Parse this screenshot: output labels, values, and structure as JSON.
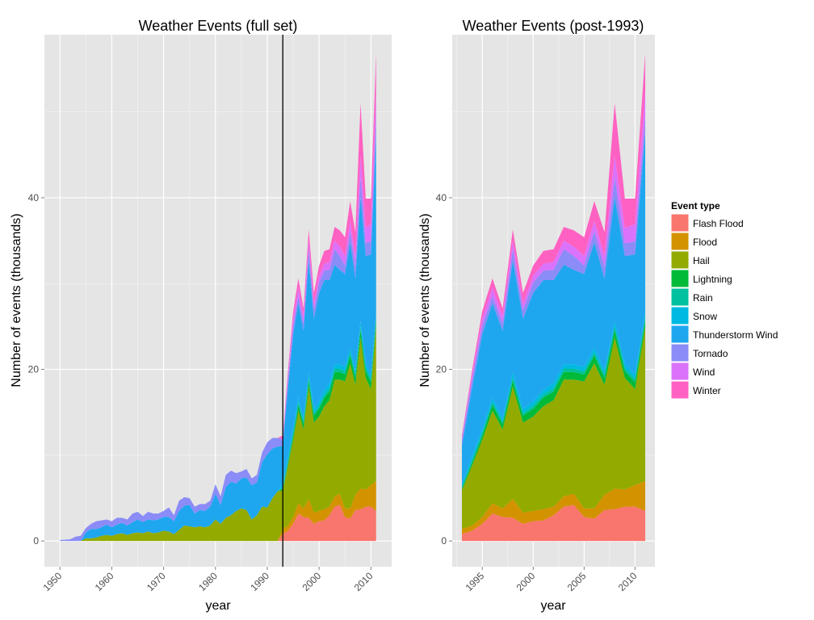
{
  "chart_data": [
    {
      "type": "area",
      "title": "Weather Events (full set)",
      "xlabel": "year",
      "ylabel": "Number of events (thousands)",
      "xlim": [
        1947,
        2014
      ],
      "ylim": [
        -3,
        59
      ],
      "x_ticks": [
        1950,
        1960,
        1970,
        1980,
        1990,
        2000,
        2010
      ],
      "y_ticks": [
        0,
        20,
        40
      ],
      "vline_x": 1993,
      "grid": true,
      "stack_order": [
        "Flash Flood",
        "Flood",
        "Hail",
        "Lightning",
        "Rain",
        "Snow",
        "Thunderstorm Wind",
        "Tornado",
        "Wind",
        "Winter"
      ],
      "x": [
        1950,
        1951,
        1952,
        1953,
        1954,
        1955,
        1956,
        1957,
        1958,
        1959,
        1960,
        1961,
        1962,
        1963,
        1964,
        1965,
        1966,
        1967,
        1968,
        1969,
        1970,
        1971,
        1972,
        1973,
        1974,
        1975,
        1976,
        1977,
        1978,
        1979,
        1980,
        1981,
        1982,
        1983,
        1984,
        1985,
        1986,
        1987,
        1988,
        1989,
        1990,
        1991,
        1992,
        1993,
        1994,
        1995,
        1996,
        1997,
        1998,
        1999,
        2000,
        2001,
        2002,
        2003,
        2004,
        2005,
        2006,
        2007,
        2008,
        2009,
        2010,
        2011
      ],
      "series": [
        {
          "name": "Flash Flood",
          "values": [
            0,
            0,
            0,
            0,
            0,
            0,
            0,
            0,
            0,
            0,
            0,
            0,
            0,
            0,
            0,
            0,
            0,
            0,
            0,
            0,
            0,
            0,
            0,
            0,
            0,
            0,
            0,
            0,
            0,
            0,
            0,
            0,
            0,
            0,
            0,
            0,
            0,
            0,
            0,
            0,
            0,
            0,
            0,
            0.8,
            1.2,
            2.0,
            3.2,
            2.8,
            2.7,
            2.0,
            2.3,
            2.4,
            3.0,
            4.0,
            4.2,
            2.8,
            2.6,
            3.6,
            3.7,
            4.0,
            4.0,
            3.5
          ]
        },
        {
          "name": "Flood",
          "values": [
            0,
            0,
            0,
            0,
            0,
            0,
            0,
            0,
            0,
            0,
            0,
            0,
            0,
            0,
            0,
            0,
            0,
            0,
            0,
            0,
            0,
            0,
            0,
            0,
            0,
            0,
            0,
            0,
            0,
            0,
            0,
            0,
            0,
            0,
            0,
            0,
            0,
            0,
            0,
            0,
            0,
            0,
            0,
            0.6,
            0.6,
            0.8,
            1.2,
            1.0,
            2.2,
            1.3,
            1.2,
            1.3,
            1.0,
            1.2,
            1.3,
            1.0,
            1.2,
            1.8,
            2.4,
            2.0,
            2.5,
            3.5
          ]
        },
        {
          "name": "Hail",
          "values": [
            0,
            0,
            0,
            0,
            0,
            0.3,
            0.3,
            0.4,
            0.6,
            0.7,
            0.6,
            0.8,
            0.9,
            0.7,
            0.9,
            1.0,
            0.9,
            1.1,
            0.9,
            1.0,
            1.2,
            1.1,
            0.8,
            1.3,
            1.8,
            1.7,
            1.6,
            1.7,
            1.6,
            1.8,
            2.5,
            2.0,
            2.7,
            3.0,
            3.5,
            3.8,
            3.6,
            2.5,
            3.0,
            4.0,
            3.9,
            5.0,
            5.8,
            4.5,
            7.0,
            9.0,
            10.8,
            9.2,
            13.1,
            10.5,
            11.0,
            12.0,
            12.4,
            13.6,
            13.3,
            14.8,
            16.9,
            12.8,
            17.6,
            13.0,
            11.2,
            18.0
          ]
        },
        {
          "name": "Lightning",
          "values": [
            0,
            0,
            0,
            0,
            0,
            0,
            0,
            0,
            0,
            0,
            0,
            0,
            0,
            0,
            0,
            0,
            0,
            0,
            0,
            0,
            0,
            0,
            0,
            0,
            0,
            0,
            0,
            0,
            0,
            0,
            0,
            0,
            0,
            0,
            0,
            0,
            0,
            0,
            0,
            0,
            0,
            0,
            0,
            0.2,
            0.3,
            0.5,
            0.7,
            0.6,
            0.7,
            0.8,
            0.9,
            1.0,
            1.0,
            0.9,
            0.9,
            0.8,
            0.9,
            0.8,
            0.9,
            0.8,
            0.8,
            0.7
          ]
        },
        {
          "name": "Rain",
          "values": [
            0,
            0,
            0,
            0,
            0,
            0,
            0,
            0,
            0,
            0,
            0,
            0,
            0,
            0,
            0,
            0,
            0,
            0,
            0,
            0,
            0,
            0,
            0,
            0,
            0,
            0,
            0,
            0,
            0,
            0,
            0,
            0,
            0,
            0,
            0,
            0,
            0,
            0,
            0,
            0,
            0,
            0,
            0,
            0.2,
            0.3,
            0.3,
            0.3,
            0.3,
            0.4,
            0.3,
            0.4,
            0.4,
            0.4,
            0.4,
            0.4,
            0.4,
            0.4,
            0.4,
            0.4,
            0.4,
            0.4,
            0.4
          ]
        },
        {
          "name": "Snow",
          "values": [
            0,
            0,
            0,
            0,
            0,
            0,
            0,
            0,
            0,
            0,
            0,
            0,
            0,
            0,
            0,
            0,
            0,
            0,
            0,
            0,
            0,
            0,
            0,
            0,
            0,
            0,
            0,
            0,
            0,
            0,
            0,
            0,
            0,
            0,
            0,
            0,
            0,
            0,
            0,
            0,
            0,
            0,
            0,
            0.3,
            0.5,
            0.5,
            0.5,
            0.4,
            0.6,
            0.5,
            0.5,
            0.5,
            0.6,
            0.5,
            0.5,
            0.5,
            0.5,
            0.5,
            0.6,
            0.5,
            0.5,
            0.5
          ]
        },
        {
          "name": "Thunderstorm Wind",
          "values": [
            0,
            0,
            0,
            0,
            0,
            0.7,
            1.1,
            1.0,
            1.0,
            1.2,
            1.0,
            1.1,
            1.2,
            1.1,
            1.3,
            1.5,
            1.3,
            1.4,
            1.5,
            1.5,
            1.6,
            1.7,
            1.5,
            2.2,
            2.3,
            2.5,
            1.6,
            1.9,
            1.9,
            2.2,
            3.0,
            2.2,
            3.6,
            3.9,
            3.2,
            3.5,
            3.8,
            4.0,
            3.8,
            5.2,
            6.2,
            5.8,
            5.2,
            4.5,
            8.0,
            11.0,
            11.0,
            10.2,
            13.0,
            10.5,
            12.6,
            12.8,
            12.0,
            11.6,
            11.0,
            10.8,
            12.3,
            10.7,
            14.5,
            12.5,
            14.0,
            21.0
          ]
        },
        {
          "name": "Tornado",
          "values": [
            0.1,
            0.15,
            0.2,
            0.5,
            0.6,
            0.5,
            0.6,
            0.9,
            0.8,
            0.6,
            0.7,
            0.8,
            0.6,
            0.7,
            1.0,
            0.9,
            0.7,
            0.9,
            0.8,
            0.7,
            0.7,
            1.1,
            0.7,
            1.2,
            1.0,
            0.8,
            0.8,
            0.7,
            0.8,
            0.7,
            1.1,
            1.0,
            1.4,
            1.3,
            1.2,
            0.8,
            1.0,
            0.8,
            0.9,
            1.1,
            1.4,
            1.2,
            1.0,
            0.7,
            0.9,
            1.0,
            0.8,
            0.9,
            1.3,
            1.0,
            1.2,
            1.1,
            1.2,
            1.8,
            1.6,
            1.0,
            1.3,
            1.4,
            2.3,
            1.5,
            1.5,
            1.8
          ]
        },
        {
          "name": "Wind",
          "values": [
            0,
            0,
            0,
            0,
            0,
            0,
            0,
            0,
            0,
            0,
            0,
            0,
            0,
            0,
            0,
            0,
            0,
            0,
            0,
            0,
            0,
            0,
            0,
            0,
            0,
            0,
            0,
            0,
            0,
            0,
            0,
            0,
            0,
            0,
            0,
            0,
            0,
            0,
            0,
            0,
            0,
            0,
            0,
            0.2,
            0.5,
            0.8,
            1.0,
            0.8,
            1.0,
            0.7,
            0.8,
            0.8,
            0.9,
            1.0,
            1.1,
            1.1,
            1.2,
            1.2,
            2.5,
            1.8,
            2.0,
            3.0
          ]
        },
        {
          "name": "Winter",
          "values": [
            0,
            0,
            0,
            0,
            0,
            0,
            0,
            0,
            0,
            0,
            0,
            0,
            0,
            0,
            0,
            0,
            0,
            0,
            0,
            0,
            0,
            0,
            0,
            0,
            0,
            0,
            0,
            0,
            0,
            0,
            0,
            0,
            0,
            0,
            0,
            0,
            0,
            0,
            0,
            0,
            0,
            0,
            0,
            0.3,
            0.6,
            0.9,
            1.1,
            0.9,
            1.3,
            1.3,
            1.2,
            1.5,
            1.5,
            1.6,
            1.9,
            2.2,
            2.3,
            2.8,
            6.1,
            3.4,
            3.0,
            4.4
          ]
        }
      ]
    },
    {
      "type": "area",
      "title": "Weather Events (post-1993)",
      "xlabel": "year",
      "ylabel": "Number of events (thousands)",
      "xlim": [
        1992.05,
        2011.95
      ],
      "ylim": [
        -3,
        59
      ],
      "x_ticks": [
        1995,
        2000,
        2005,
        2010
      ],
      "y_ticks": [
        0,
        20,
        40
      ],
      "grid": true,
      "legend_title": "Event type",
      "legend_position": "right",
      "uses_series_of_chart": 0,
      "x_start": 1993
    }
  ],
  "colors": {
    "Flash Flood": "#F8766D",
    "Flood": "#D39200",
    "Hail": "#93AA00",
    "Lightning": "#00BA38",
    "Rain": "#00C19F",
    "Snow": "#00B9E3",
    "Thunderstorm Wind": "#1EA7EF",
    "Tornado": "#8B8CF7",
    "Wind": "#DB72FB",
    "Winter": "#FF61C3",
    "panel_bg": "#E5E5E5",
    "grid_major": "#FFFFFF",
    "grid_minor": "#F2F2F2"
  }
}
